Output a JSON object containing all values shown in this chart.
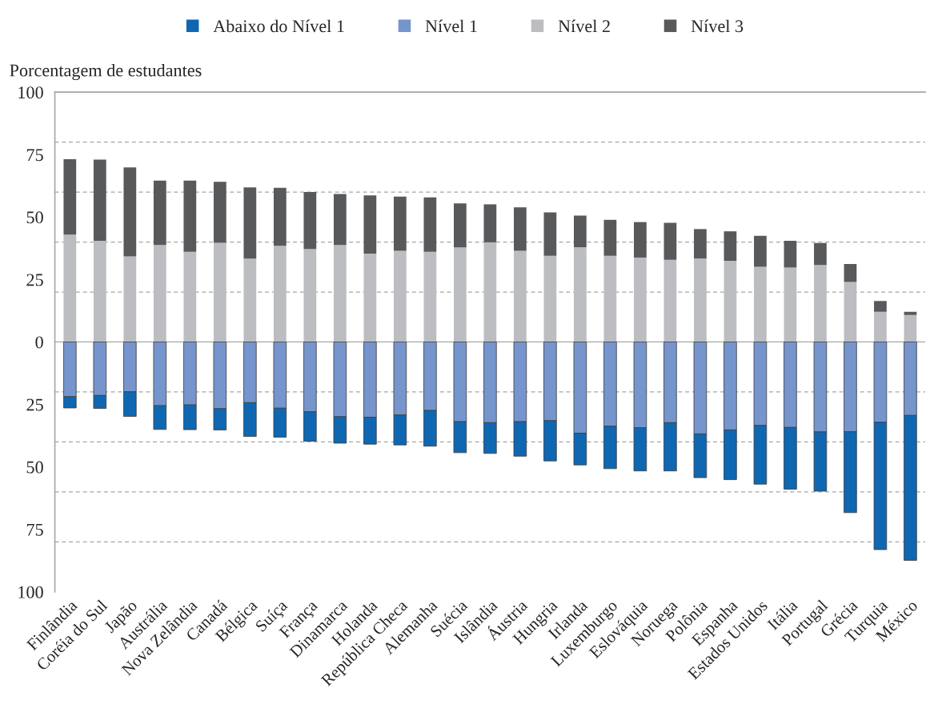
{
  "chart_data": {
    "type": "bar",
    "stacked": true,
    "ylabel": "Porcentagem de estudantes",
    "categories": [
      "Finlândia",
      "Coréia do Sul",
      "Japão",
      "Austrália",
      "Nova Zelândia",
      "Canadá",
      "Bélgica",
      "Suíça",
      "França",
      "Dinamarca",
      "Holanda",
      "República Checa",
      "Alemanha",
      "Suécia",
      "Islândia",
      "Áustria",
      "Hungria",
      "Irlanda",
      "Luxemburgo",
      "Eslováquia",
      "Noruega",
      "Polônia",
      "Espanha",
      "Estados Unidos",
      "Itália",
      "Portugal",
      "Grécia",
      "Turquia",
      "México"
    ],
    "series": [
      {
        "name": "Abaixo do Nível 1",
        "color": "#0f67b1",
        "values": [
          -4.5,
          -5.2,
          -9.9,
          -9.5,
          -9.9,
          -8.5,
          -13.5,
          -11.6,
          -11.8,
          -10.6,
          -10.8,
          -12.0,
          -14.3,
          -12.4,
          -12.3,
          -13.8,
          -16.1,
          -12.7,
          -17.0,
          -17.3,
          -19.3,
          -17.5,
          -19.9,
          -23.5,
          -24.7,
          -23.7,
          -32.4,
          -51.0,
          -58.0
        ]
      },
      {
        "name": "Nível 1",
        "color": "#7595cc",
        "values": [
          -21.9,
          -21.4,
          -19.9,
          -25.5,
          -25.2,
          -26.7,
          -24.3,
          -26.5,
          -27.9,
          -29.9,
          -30.1,
          -29.2,
          -27.4,
          -31.9,
          -32.3,
          -31.9,
          -31.5,
          -36.5,
          -33.7,
          -34.3,
          -32.3,
          -36.8,
          -35.2,
          -33.4,
          -34.2,
          -36.0,
          -35.9,
          -32.1,
          -29.4
        ]
      },
      {
        "name": "Nível 2",
        "color": "#bcbdc1",
        "values": [
          43.0,
          40.5,
          34.3,
          38.8,
          36.1,
          39.7,
          33.4,
          38.5,
          37.2,
          38.8,
          35.4,
          36.5,
          36.1,
          37.9,
          39.9,
          36.5,
          34.5,
          37.9,
          34.5,
          33.8,
          32.9,
          33.4,
          32.5,
          30.1,
          29.8,
          30.8,
          24.0,
          12.1,
          10.8
        ]
      },
      {
        "name": "Nível 3",
        "color": "#58595b",
        "values": [
          30.2,
          32.5,
          35.6,
          25.8,
          28.5,
          24.4,
          28.5,
          23.2,
          22.8,
          20.4,
          23.3,
          21.7,
          21.8,
          17.6,
          15.2,
          17.4,
          17.4,
          12.7,
          14.4,
          14.2,
          14.8,
          11.8,
          11.8,
          12.4,
          10.7,
          8.8,
          7.2,
          4.3,
          1.3
        ]
      }
    ],
    "ylim": [
      -100,
      100
    ],
    "yticks": [
      100,
      75,
      50,
      25,
      0,
      {
        "value": -25,
        "label": "25"
      },
      {
        "value": -50,
        "label": "50"
      },
      {
        "value": -75,
        "label": "75"
      },
      {
        "value": -100,
        "label": "100"
      }
    ],
    "ref_lines": [
      {
        "axis": "y",
        "value": 80,
        "line_style": "dashed",
        "color": "#a6a6a6"
      },
      {
        "axis": "y",
        "value": 60,
        "line_style": "dashed",
        "color": "#a6a6a6"
      },
      {
        "axis": "y",
        "value": 40,
        "line_style": "dashed",
        "color": "#a6a6a6"
      },
      {
        "axis": "y",
        "value": 20,
        "line_style": "dashed",
        "color": "#a6a6a6"
      },
      {
        "axis": "y",
        "value": 0,
        "line_style": "solid",
        "color": "#a6a6a6"
      },
      {
        "axis": "y",
        "value": -20,
        "line_style": "dashed",
        "color": "#a6a6a6"
      },
      {
        "axis": "y",
        "value": -40,
        "line_style": "dashed",
        "color": "#a6a6a6"
      },
      {
        "axis": "y",
        "value": -60,
        "line_style": "dashed",
        "color": "#a6a6a6"
      },
      {
        "axis": "y",
        "value": -80,
        "line_style": "dashed",
        "color": "#a6a6a6"
      }
    ],
    "grid": false,
    "legend": "top"
  }
}
